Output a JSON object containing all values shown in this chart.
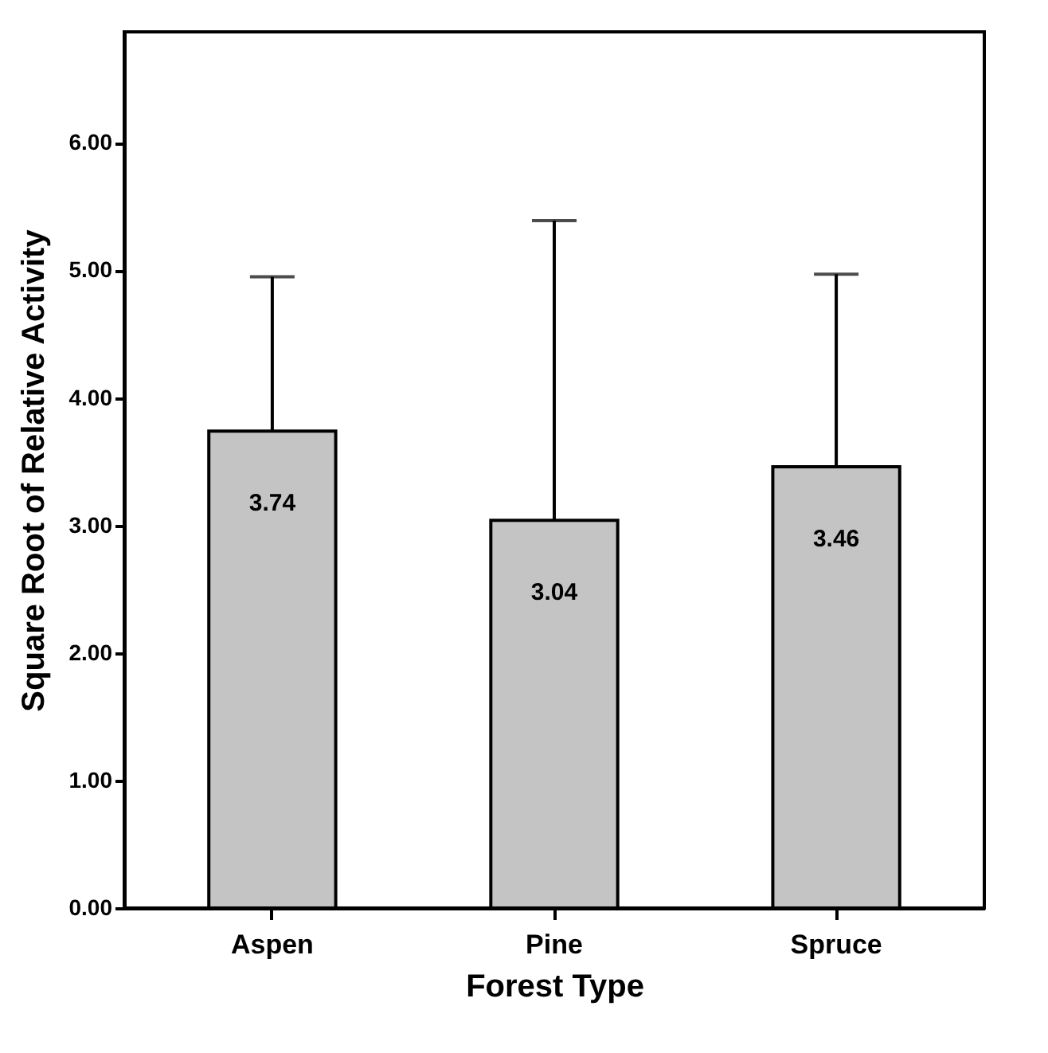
{
  "chart_data": {
    "type": "bar",
    "xlabel": "Forest Type",
    "ylabel": "Square Root of Relative Activity",
    "categories": [
      "Aspen",
      "Pine",
      "Spruce"
    ],
    "values": [
      3.74,
      3.04,
      3.46
    ],
    "value_labels": [
      "3.74",
      "3.04",
      "3.46"
    ],
    "errors": [
      [
        3.74,
        4.95
      ],
      [
        3.04,
        5.39
      ],
      [
        3.46,
        4.97
      ]
    ],
    "color": "#c4c4c4",
    "ylim": [
      0,
      6.87
    ],
    "yticks": [
      {
        "value": 0,
        "label": "0.00"
      },
      {
        "value": 1,
        "label": "1.00"
      },
      {
        "value": 2,
        "label": "2.00"
      },
      {
        "value": 3,
        "label": "3.00"
      },
      {
        "value": 4,
        "label": "4.00"
      },
      {
        "value": 5,
        "label": "5.00"
      },
      {
        "value": 6,
        "label": "6.00"
      }
    ],
    "grid": false
  }
}
